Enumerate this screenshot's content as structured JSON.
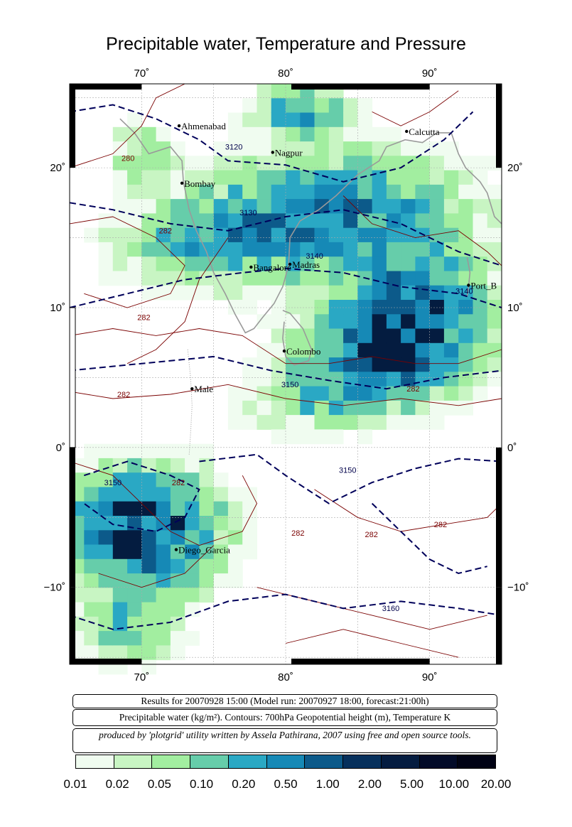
{
  "title": "Precipitable water, Temperature and Pressure",
  "map": {
    "lon_range": [
      65,
      95
    ],
    "lat_range": [
      -15.5,
      26
    ],
    "lon_ticks": [
      "70˚",
      "80˚",
      "90˚"
    ],
    "lat_ticks": [
      "20˚",
      "10˚",
      "0˚",
      "−10˚"
    ],
    "cities": [
      {
        "name": "Ahmenabad",
        "lon": 72.6,
        "lat": 23.0
      },
      {
        "name": "Nagpur",
        "lon": 79.1,
        "lat": 21.1
      },
      {
        "name": "Calcutta",
        "lon": 88.4,
        "lat": 22.6
      },
      {
        "name": "Bombay",
        "lon": 72.8,
        "lat": 18.9
      },
      {
        "name": "Bangalore",
        "lon": 77.6,
        "lat": 12.9
      },
      {
        "name": "Madras",
        "lon": 80.3,
        "lat": 13.1
      },
      {
        "name": "Port_B",
        "lon": 92.7,
        "lat": 11.6
      },
      {
        "name": "Colombo",
        "lon": 79.9,
        "lat": 6.9
      },
      {
        "name": "Male",
        "lon": 73.5,
        "lat": 4.2
      },
      {
        "name": "Diego_Garcia",
        "lon": 72.4,
        "lat": -7.3
      }
    ],
    "contour_labels": [
      {
        "text": "280",
        "kind": "temp"
      },
      {
        "text": "3120",
        "kind": "height"
      },
      {
        "text": "282",
        "kind": "temp"
      },
      {
        "text": "3130",
        "kind": "height"
      },
      {
        "text": "3140",
        "kind": "height"
      },
      {
        "text": "3140",
        "kind": "height"
      },
      {
        "text": "282",
        "kind": "temp"
      },
      {
        "text": "282",
        "kind": "temp"
      },
      {
        "text": "3150",
        "kind": "height"
      },
      {
        "text": "282",
        "kind": "temp"
      },
      {
        "text": "3150",
        "kind": "height"
      },
      {
        "text": "282",
        "kind": "temp"
      },
      {
        "text": "3150",
        "kind": "height"
      },
      {
        "text": "282",
        "kind": "temp"
      },
      {
        "text": "282",
        "kind": "temp"
      },
      {
        "text": "282",
        "kind": "temp"
      },
      {
        "text": "3160",
        "kind": "height"
      }
    ],
    "colors": {
      "temperature_contour": "#7a0000",
      "height_contour": "#00005a",
      "coastline": "#9a9a9a"
    }
  },
  "info": {
    "line1": "Results for 20070928 15:00 (Model run: 20070927 18:00, forecast:21:00h)",
    "line2": "Precipitable water (kg/m²).  Contours: 700hPa Geopotential height (m), Temperature K",
    "line3": "produced by 'plotgrid' utility written by Assela Pathirana, 2007 using free and open source tools."
  },
  "legend": {
    "ticks": [
      "0.01",
      "0.02",
      "0.05",
      "0.10",
      "0.20",
      "0.50",
      "1.00",
      "2.00",
      "5.00",
      "10.00",
      "20.00"
    ],
    "colors": [
      "#f0fcf0",
      "#c8f5c3",
      "#a2eea0",
      "#66cdaa",
      "#2aa8c4",
      "#1689b6",
      "#0c5a8a",
      "#06305c",
      "#041c40",
      "#020a28",
      "#000214"
    ]
  }
}
